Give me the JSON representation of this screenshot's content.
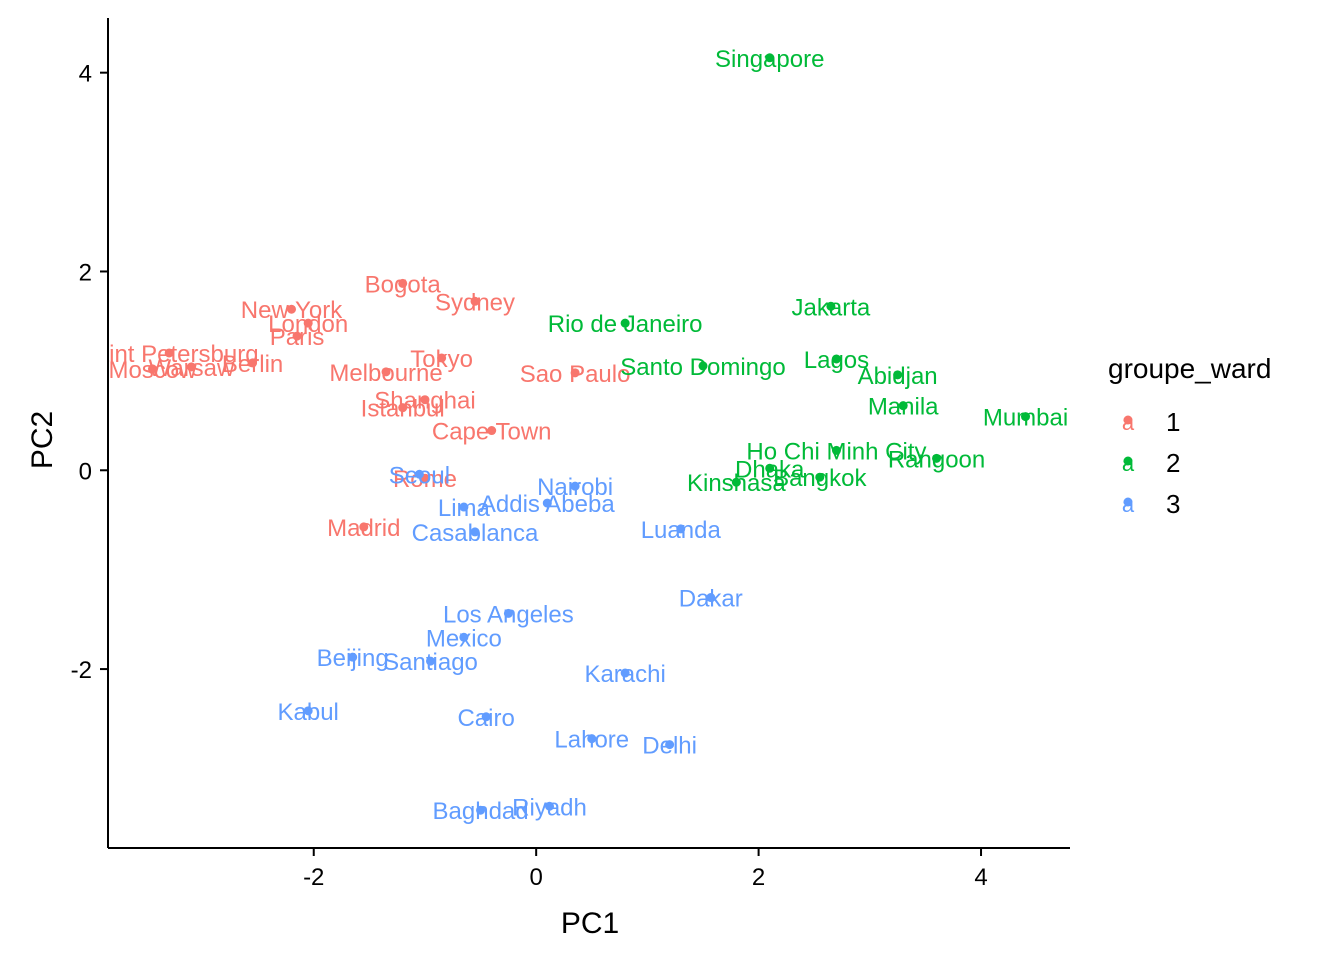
{
  "chart_data": {
    "type": "scatter",
    "title": "",
    "xlabel": "PC1",
    "ylabel": "PC2",
    "xlim": [
      -3.85,
      4.8
    ],
    "ylim": [
      -3.8,
      4.55
    ],
    "xticks": [
      -2,
      0,
      2,
      4
    ],
    "yticks": [
      -2,
      0,
      2,
      4
    ],
    "grid": false,
    "legend": {
      "title": "groupe_ward",
      "placement": "right",
      "entries": [
        {
          "label": "1",
          "color": "#F8766D"
        },
        {
          "label": "2",
          "color": "#00BA38"
        },
        {
          "label": "3",
          "color": "#619CFF"
        }
      ]
    },
    "points": [
      {
        "label": "Singapore",
        "x": 2.1,
        "y": 4.15,
        "group": "2"
      },
      {
        "label": "Bogota",
        "x": -1.2,
        "y": 1.88,
        "group": "1"
      },
      {
        "label": "Sydney",
        "x": -0.55,
        "y": 1.7,
        "group": "1"
      },
      {
        "label": "New York",
        "x": -2.2,
        "y": 1.62,
        "group": "1"
      },
      {
        "label": "London",
        "x": -2.05,
        "y": 1.48,
        "group": "1"
      },
      {
        "label": "Paris",
        "x": -2.15,
        "y": 1.35,
        "group": "1"
      },
      {
        "label": "Saint Petersburg",
        "x": -3.3,
        "y": 1.18,
        "group": "1"
      },
      {
        "label": "Berlin",
        "x": -2.55,
        "y": 1.08,
        "group": "1"
      },
      {
        "label": "Moscow",
        "x": -3.45,
        "y": 1.02,
        "group": "1"
      },
      {
        "label": "Warsaw",
        "x": -3.1,
        "y": 1.04,
        "group": "1"
      },
      {
        "label": "Melbourne",
        "x": -1.35,
        "y": 0.99,
        "group": "1"
      },
      {
        "label": "Tokyo",
        "x": -0.85,
        "y": 1.13,
        "group": "1"
      },
      {
        "label": "Sao Paulo",
        "x": 0.35,
        "y": 0.98,
        "group": "1"
      },
      {
        "label": "Shanghai",
        "x": -1.0,
        "y": 0.71,
        "group": "1"
      },
      {
        "label": "Istanbul",
        "x": -1.2,
        "y": 0.63,
        "group": "1"
      },
      {
        "label": "Cape Town",
        "x": -0.4,
        "y": 0.4,
        "group": "1"
      },
      {
        "label": "Rome",
        "x": -1.0,
        "y": -0.08,
        "group": "1"
      },
      {
        "label": "Madrid",
        "x": -1.55,
        "y": -0.57,
        "group": "1"
      },
      {
        "label": "Rio de Janeiro",
        "x": 0.8,
        "y": 1.48,
        "group": "2"
      },
      {
        "label": "Jakarta",
        "x": 2.65,
        "y": 1.65,
        "group": "2"
      },
      {
        "label": "Santo Domingo",
        "x": 1.5,
        "y": 1.05,
        "group": "2"
      },
      {
        "label": "Lagos",
        "x": 2.7,
        "y": 1.12,
        "group": "2"
      },
      {
        "label": "Abidjan",
        "x": 3.25,
        "y": 0.96,
        "group": "2"
      },
      {
        "label": "Manila",
        "x": 3.3,
        "y": 0.65,
        "group": "2"
      },
      {
        "label": "Mumbai",
        "x": 4.4,
        "y": 0.54,
        "group": "2"
      },
      {
        "label": "Ho Chi Minh City",
        "x": 2.7,
        "y": 0.2,
        "group": "2"
      },
      {
        "label": "Rangoon",
        "x": 3.6,
        "y": 0.12,
        "group": "2"
      },
      {
        "label": "Dhaka",
        "x": 2.1,
        "y": 0.02,
        "group": "2"
      },
      {
        "label": "Bangkok",
        "x": 2.55,
        "y": -0.07,
        "group": "2"
      },
      {
        "label": "Kinshasa",
        "x": 1.8,
        "y": -0.12,
        "group": "2"
      },
      {
        "label": "Seoul",
        "x": -1.05,
        "y": -0.04,
        "group": "3"
      },
      {
        "label": "Nairobi",
        "x": 0.35,
        "y": -0.16,
        "group": "3"
      },
      {
        "label": "Addis Abeba",
        "x": 0.1,
        "y": -0.33,
        "group": "3"
      },
      {
        "label": "Lima",
        "x": -0.65,
        "y": -0.37,
        "group": "3"
      },
      {
        "label": "Casablanca",
        "x": -0.55,
        "y": -0.62,
        "group": "3"
      },
      {
        "label": "Luanda",
        "x": 1.3,
        "y": -0.59,
        "group": "3"
      },
      {
        "label": "Dakar",
        "x": 1.57,
        "y": -1.28,
        "group": "3"
      },
      {
        "label": "Los Angeles",
        "x": -0.25,
        "y": -1.44,
        "group": "3"
      },
      {
        "label": "Mexico",
        "x": -0.65,
        "y": -1.68,
        "group": "3"
      },
      {
        "label": "Beijing",
        "x": -1.65,
        "y": -1.88,
        "group": "3"
      },
      {
        "label": "Santiago",
        "x": -0.95,
        "y": -1.92,
        "group": "3"
      },
      {
        "label": "Karachi",
        "x": 0.8,
        "y": -2.04,
        "group": "3"
      },
      {
        "label": "Kabul",
        "x": -2.05,
        "y": -2.42,
        "group": "3"
      },
      {
        "label": "Cairo",
        "x": -0.45,
        "y": -2.48,
        "group": "3"
      },
      {
        "label": "Lahore",
        "x": 0.5,
        "y": -2.7,
        "group": "3"
      },
      {
        "label": "Delhi",
        "x": 1.2,
        "y": -2.76,
        "group": "3"
      },
      {
        "label": "Baghdad",
        "x": -0.5,
        "y": -3.42,
        "group": "3"
      },
      {
        "label": "Riyadh",
        "x": 0.12,
        "y": -3.38,
        "group": "3"
      }
    ]
  }
}
